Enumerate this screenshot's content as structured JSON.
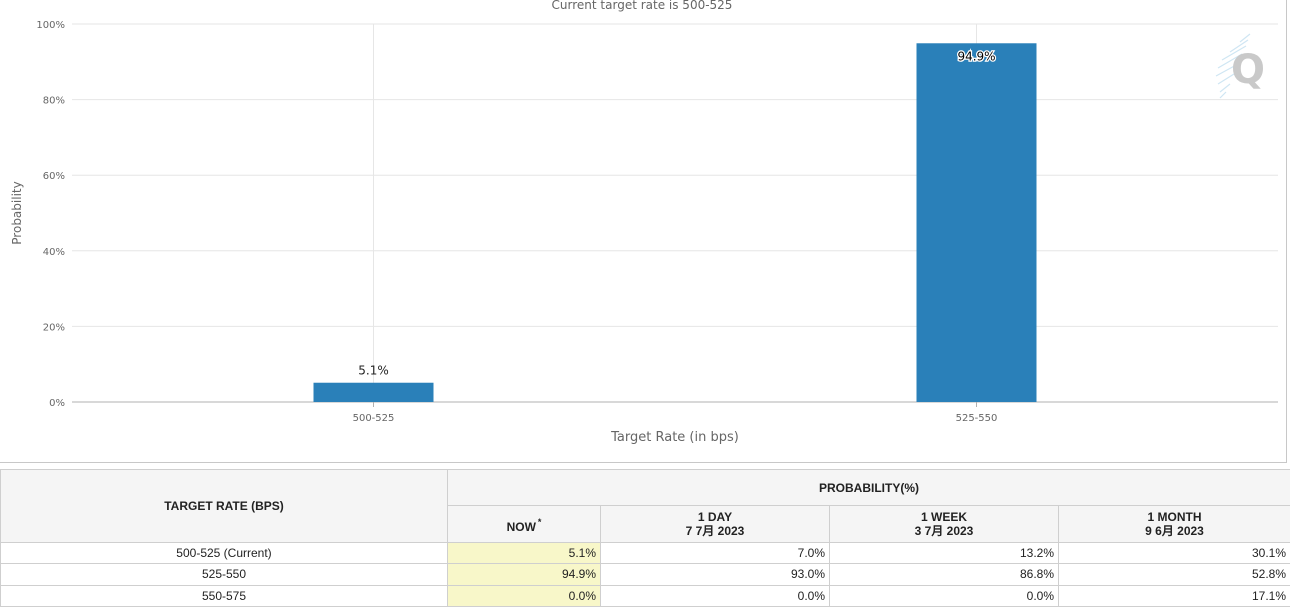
{
  "chart_data": {
    "type": "bar",
    "title": "Current target rate is 500-525",
    "xlabel": "Target Rate (in bps)",
    "ylabel": "Probability",
    "categories": [
      "500-525",
      "525-550"
    ],
    "values": [
      5.1,
      94.9
    ],
    "data_labels": [
      "5.1%",
      "94.9%"
    ],
    "ylim": [
      0,
      100
    ],
    "yticks": [
      0,
      20,
      40,
      60,
      80,
      100
    ],
    "ytick_labels": [
      "0%",
      "20%",
      "40%",
      "60%",
      "80%",
      "100%"
    ],
    "bar_color": "#2a80b9",
    "grid": true,
    "legend": "none"
  },
  "table": {
    "rate_header": "TARGET RATE (BPS)",
    "prob_header": "PROBABILITY(%)",
    "columns": [
      {
        "label": "NOW",
        "sub": "",
        "marker": "*"
      },
      {
        "label": "1 DAY",
        "sub": "7 7月 2023"
      },
      {
        "label": "1 WEEK",
        "sub": "3 7月 2023"
      },
      {
        "label": "1 MONTH",
        "sub": "9 6月 2023"
      }
    ],
    "rows": [
      {
        "rate": "500-525 (Current)",
        "values": [
          "5.1%",
          "7.0%",
          "13.2%",
          "30.1%"
        ]
      },
      {
        "rate": "525-550",
        "values": [
          "94.9%",
          "93.0%",
          "86.8%",
          "52.8%"
        ]
      },
      {
        "rate": "550-575",
        "values": [
          "0.0%",
          "0.0%",
          "0.0%",
          "17.1%"
        ]
      }
    ]
  }
}
